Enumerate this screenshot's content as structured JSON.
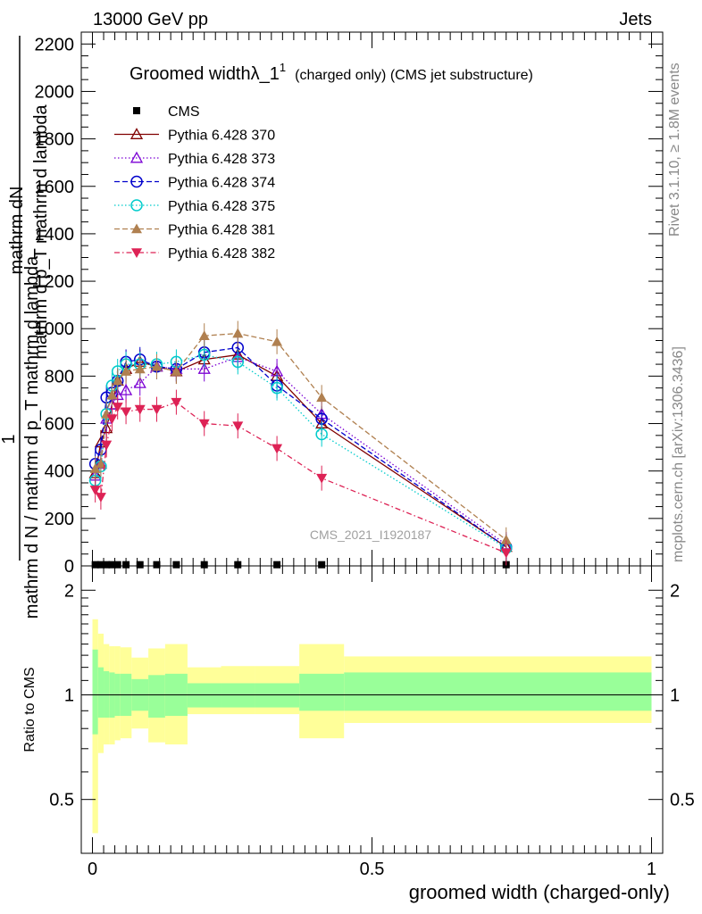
{
  "header": {
    "left": "13000 GeV pp",
    "right": "Jets"
  },
  "side_labels": {
    "rivet": "Rivet 3.1.10, ≥ 1.8M events",
    "mcplots": "mcplots.cern.ch [arXiv:1306.3436]"
  },
  "watermark": "CMS_2021_I1920187",
  "chart_data": [
    {
      "type": "line",
      "title_main": "Groomed widthλ_1",
      "title_sup": "1",
      "title_rest": "(charged only) (CMS jet substructure)",
      "ylabel_top": "mathrm dN",
      "ylabel_num_2": "mathrm d p_T mathrm d lambda",
      "ylabel_one": "1",
      "ylabel_den": "mathrm d N / mathrm d p_T mathrm d lambda",
      "ylim": [
        0,
        2250
      ],
      "yticks": [
        0,
        200,
        400,
        600,
        800,
        1000,
        1200,
        1400,
        1600,
        1800,
        2000,
        2200
      ],
      "ytick_labels": [
        "0",
        "200",
        "400",
        "600",
        "800",
        "1000",
        "1200",
        "1400",
        "1600",
        "1800",
        "2000",
        "2200"
      ],
      "xlim": [
        -0.02,
        1.02
      ],
      "series": [
        {
          "name": "CMS",
          "color": "#000000",
          "marker": "square-filled",
          "dash": "",
          "x": [
            0.005,
            0.015,
            0.025,
            0.035,
            0.045,
            0.06,
            0.085,
            0.115,
            0.15,
            0.2,
            0.26,
            0.33,
            0.41,
            0.74
          ],
          "y": [
            5,
            5,
            5,
            5,
            5,
            5,
            5,
            5,
            5,
            5,
            5,
            5,
            5,
            5
          ]
        },
        {
          "name": "Pythia 6.428 370",
          "color": "#800000",
          "marker": "triangle-open",
          "dash": "",
          "x": [
            0.005,
            0.015,
            0.025,
            0.035,
            0.045,
            0.06,
            0.085,
            0.115,
            0.15,
            0.2,
            0.26,
            0.33,
            0.41,
            0.74
          ],
          "y": [
            390,
            520,
            580,
            680,
            780,
            830,
            860,
            840,
            820,
            870,
            890,
            800,
            600,
            80
          ]
        },
        {
          "name": "Pythia 6.428 373",
          "color": "#7b00d4",
          "marker": "triangle-open",
          "dash": "1.5,2.5",
          "x": [
            0.005,
            0.015,
            0.025,
            0.035,
            0.045,
            0.06,
            0.085,
            0.115,
            0.15,
            0.2,
            0.26,
            0.33,
            0.41,
            0.74
          ],
          "y": [
            380,
            430,
            620,
            680,
            720,
            740,
            770,
            840,
            830,
            830,
            880,
            820,
            640,
            90
          ]
        },
        {
          "name": "Pythia 6.428 374",
          "color": "#0000cc",
          "marker": "circle-open",
          "dash": "6,3",
          "x": [
            0.005,
            0.015,
            0.025,
            0.035,
            0.045,
            0.06,
            0.085,
            0.115,
            0.15,
            0.2,
            0.26,
            0.33,
            0.41,
            0.74
          ],
          "y": [
            430,
            490,
            710,
            730,
            780,
            860,
            870,
            840,
            830,
            900,
            920,
            760,
            620,
            80
          ]
        },
        {
          "name": "Pythia 6.428 375",
          "color": "#00cccc",
          "marker": "circle-open",
          "dash": "1.5,2.5",
          "x": [
            0.005,
            0.015,
            0.025,
            0.035,
            0.045,
            0.06,
            0.085,
            0.115,
            0.15,
            0.2,
            0.26,
            0.33,
            0.41,
            0.74
          ],
          "y": [
            360,
            420,
            640,
            760,
            820,
            850,
            850,
            850,
            860,
            890,
            860,
            750,
            555,
            75
          ]
        },
        {
          "name": "Pythia 6.428 381",
          "color": "#b08050",
          "marker": "triangle-filled",
          "dash": "6,3",
          "x": [
            0.005,
            0.015,
            0.025,
            0.035,
            0.045,
            0.06,
            0.085,
            0.115,
            0.15,
            0.2,
            0.26,
            0.33,
            0.41,
            0.74
          ],
          "y": [
            410,
            430,
            640,
            720,
            780,
            820,
            830,
            840,
            820,
            970,
            980,
            945,
            710,
            110
          ]
        },
        {
          "name": "Pythia 6.428 382",
          "color": "#dd2255",
          "marker": "triangle-down-filled",
          "dash": "6,3,1.5,3",
          "x": [
            0.005,
            0.015,
            0.025,
            0.035,
            0.045,
            0.06,
            0.085,
            0.115,
            0.15,
            0.2,
            0.26,
            0.33,
            0.41,
            0.74
          ],
          "y": [
            320,
            290,
            510,
            620,
            670,
            650,
            660,
            660,
            690,
            600,
            590,
            495,
            370,
            55
          ]
        }
      ]
    },
    {
      "type": "area",
      "ylabel": "Ratio to CMS",
      "xlabel": "groomed width (charged-only)",
      "ylim": [
        0.35,
        2.35
      ],
      "ytick_labels": [
        "0.5",
        "1",
        "2"
      ],
      "yticks": [
        0.5,
        1,
        2
      ],
      "xticks": [
        0,
        0.5,
        1
      ],
      "xtick_labels": [
        "0",
        "0.5",
        "1"
      ],
      "xlim": [
        -0.02,
        1.02
      ],
      "band_colors": {
        "outer": "#ffff99",
        "inner": "#99ff99"
      },
      "bins": [
        {
          "x0": 0.0,
          "x1": 0.01,
          "outer": [
            0.4,
            1.65
          ],
          "inner": [
            0.77,
            1.35
          ]
        },
        {
          "x0": 0.01,
          "x1": 0.02,
          "outer": [
            0.68,
            1.5
          ],
          "inner": [
            0.86,
            1.2
          ]
        },
        {
          "x0": 0.02,
          "x1": 0.03,
          "outer": [
            0.72,
            1.4
          ],
          "inner": [
            0.86,
            1.17
          ]
        },
        {
          "x0": 0.03,
          "x1": 0.04,
          "outer": [
            0.72,
            1.38
          ],
          "inner": [
            0.86,
            1.16
          ]
        },
        {
          "x0": 0.04,
          "x1": 0.05,
          "outer": [
            0.74,
            1.38
          ],
          "inner": [
            0.87,
            1.15
          ]
        },
        {
          "x0": 0.05,
          "x1": 0.07,
          "outer": [
            0.75,
            1.37
          ],
          "inner": [
            0.87,
            1.15
          ]
        },
        {
          "x0": 0.07,
          "x1": 0.1,
          "outer": [
            0.8,
            1.28
          ],
          "inner": [
            0.9,
            1.11
          ]
        },
        {
          "x0": 0.1,
          "x1": 0.13,
          "outer": [
            0.73,
            1.36
          ],
          "inner": [
            0.86,
            1.14
          ]
        },
        {
          "x0": 0.13,
          "x1": 0.17,
          "outer": [
            0.72,
            1.4
          ],
          "inner": [
            0.87,
            1.15
          ]
        },
        {
          "x0": 0.17,
          "x1": 0.23,
          "outer": [
            0.88,
            1.2
          ],
          "inner": [
            0.92,
            1.08
          ]
        },
        {
          "x0": 0.23,
          "x1": 0.29,
          "outer": [
            0.88,
            1.21
          ],
          "inner": [
            0.92,
            1.08
          ]
        },
        {
          "x0": 0.29,
          "x1": 0.37,
          "outer": [
            0.88,
            1.21
          ],
          "inner": [
            0.92,
            1.08
          ]
        },
        {
          "x0": 0.37,
          "x1": 0.45,
          "outer": [
            0.75,
            1.4
          ],
          "inner": [
            0.9,
            1.15
          ]
        },
        {
          "x0": 0.45,
          "x1": 1.0,
          "outer": [
            0.83,
            1.29
          ],
          "inner": [
            0.9,
            1.16
          ]
        }
      ]
    }
  ]
}
